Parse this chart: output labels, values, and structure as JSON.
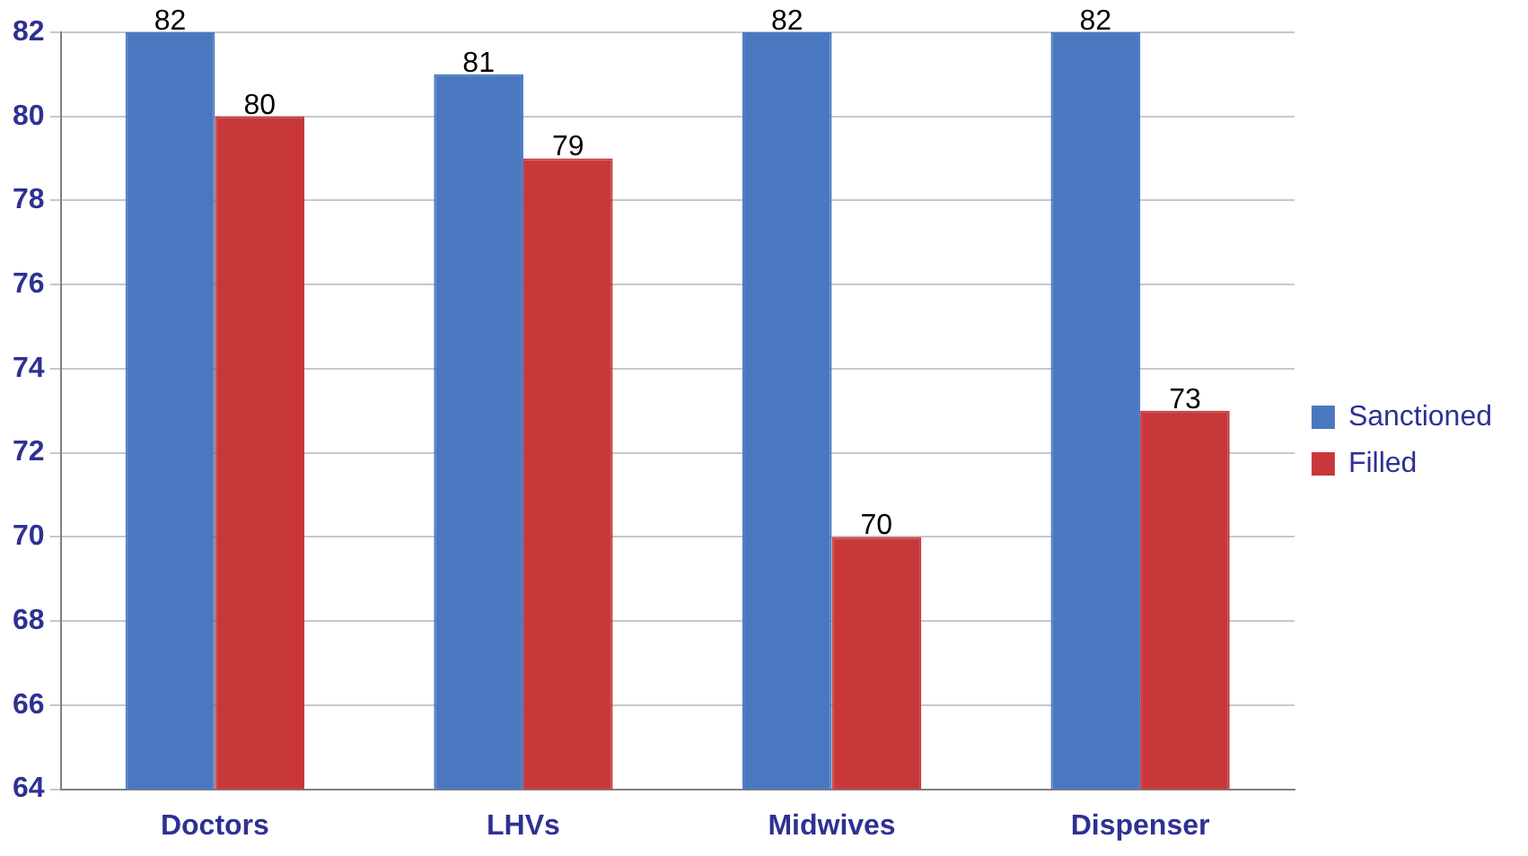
{
  "chart_data": {
    "type": "bar",
    "categories": [
      "Doctors",
      "LHVs",
      "Midwives",
      "Dispenser"
    ],
    "series": [
      {
        "name": "Sanctioned",
        "color": "#4a78c0",
        "values": [
          82,
          81,
          82,
          82
        ]
      },
      {
        "name": "Filled",
        "color": "#c8383a",
        "values": [
          80,
          79,
          70,
          73
        ]
      }
    ],
    "ylim": [
      64,
      82
    ],
    "yticks": [
      64,
      66,
      68,
      70,
      72,
      74,
      76,
      78,
      80,
      82
    ],
    "grid": "y",
    "legend": "right",
    "data_labels": true
  }
}
